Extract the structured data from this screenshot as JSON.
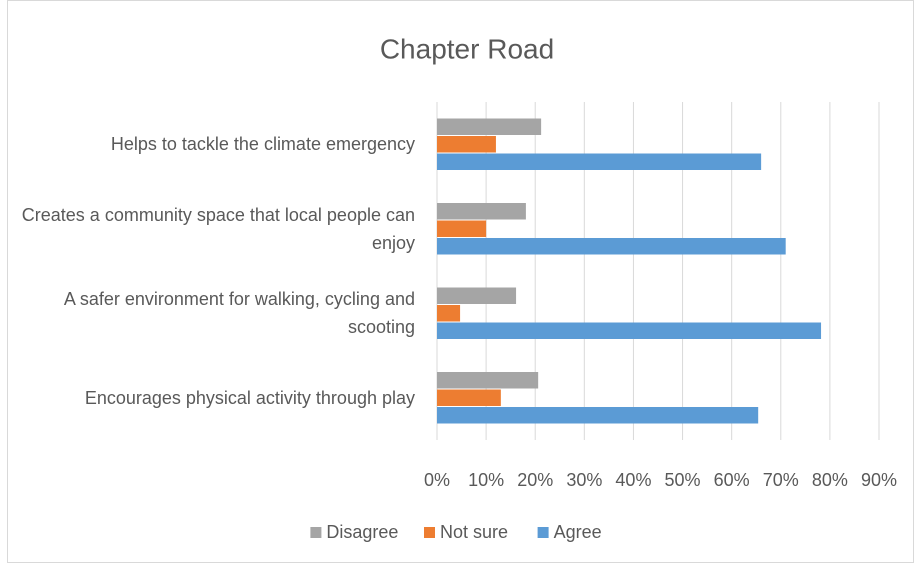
{
  "chart_data": {
    "type": "bar",
    "orientation": "horizontal",
    "title": "Chapter Road",
    "categories": [
      "Helps to tackle the climate emergency",
      "Creates a community space that local people can enjoy",
      "A safer environment for walking, cycling and scooting",
      "Encourages physical activity through play"
    ],
    "series": [
      {
        "name": "Disagree",
        "color": "#a5a5a5",
        "values": [
          21.2,
          18.1,
          16.1,
          20.6
        ]
      },
      {
        "name": "Not sure",
        "color": "#ed7d31",
        "values": [
          12,
          10,
          4.7,
          13
        ]
      },
      {
        "name": "Agree",
        "color": "#5b9bd5",
        "values": [
          66,
          71,
          78.2,
          65.4
        ]
      }
    ],
    "xlim": [
      0,
      90
    ],
    "xticks": [
      {
        "value": 0,
        "label": "0%"
      },
      {
        "value": 10,
        "label": "10%"
      },
      {
        "value": 20,
        "label": "20%"
      },
      {
        "value": 30,
        "label": "30%"
      },
      {
        "value": 40,
        "label": "40%"
      },
      {
        "value": 50,
        "label": "50%"
      },
      {
        "value": 60,
        "label": "60%"
      },
      {
        "value": 70,
        "label": "70%"
      },
      {
        "value": 80,
        "label": "80%"
      },
      {
        "value": 90,
        "label": "90%"
      }
    ],
    "grid": true,
    "legend": "bottom"
  }
}
